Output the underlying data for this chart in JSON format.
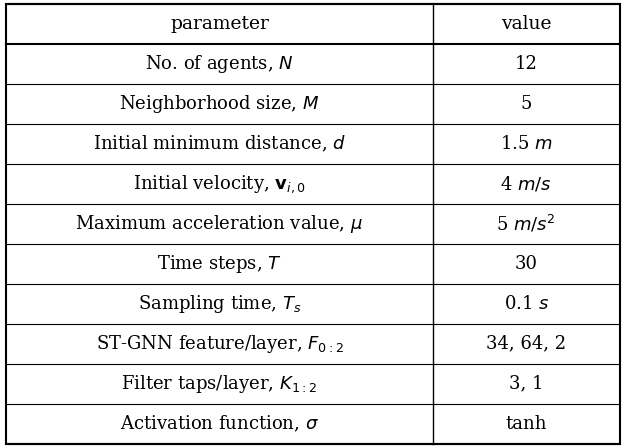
{
  "title_row": [
    "parameter",
    "value"
  ],
  "rows": [
    [
      "No. of agents, $N$",
      "12"
    ],
    [
      "Neighborhood size, $M$",
      "5"
    ],
    [
      "Initial minimum distance, $d$",
      "1.5 $m$"
    ],
    [
      "Initial velocity, $\\mathbf{v}_{i,0}$",
      "4 $m/s$"
    ],
    [
      "Maximum acceleration value, $\\mu$",
      "5 $m/s^2$"
    ],
    [
      "Time steps, $T$",
      "30"
    ],
    [
      "Sampling time, $T_s$",
      "0.1 $s$"
    ],
    [
      "ST-GNN feature/layer, $F_{0:2}$",
      "34, 64, 2"
    ],
    [
      "Filter taps/layer, $K_{1:2}$",
      "3, 1"
    ],
    [
      "Activation function, $\\sigma$",
      "tanh"
    ]
  ],
  "col_split": 0.695,
  "bg_color": "#ffffff",
  "line_color": "#000000",
  "header_fontsize": 13.5,
  "row_fontsize": 13.0,
  "outer_lw": 1.5,
  "header_lw": 1.5,
  "inner_lw": 0.8,
  "vert_lw": 1.0
}
